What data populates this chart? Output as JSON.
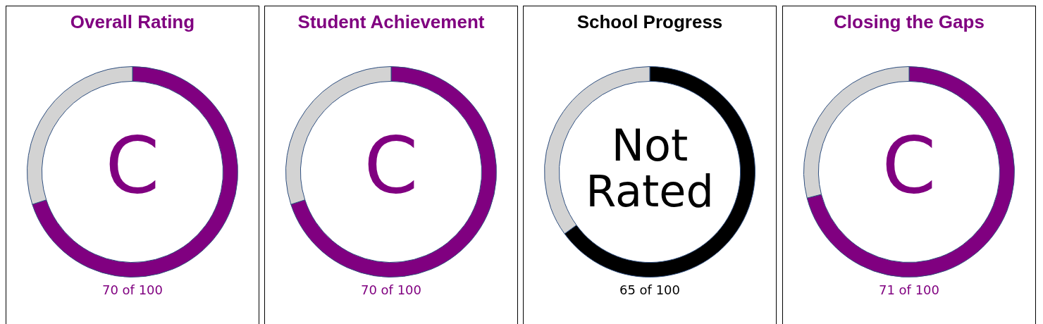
{
  "chart_data": [
    {
      "type": "donut",
      "title": "Overall Rating",
      "categories": [
        null,
        null
      ],
      "values": [
        70,
        30
      ],
      "colors": [
        "#800080",
        "#d3d3d3"
      ],
      "annotations": [
        "C",
        "70 of 100"
      ]
    },
    {
      "type": "donut",
      "title": "Student Achievement",
      "categories": [
        null,
        null
      ],
      "values": [
        70,
        30
      ],
      "colors": [
        "#800080",
        "#d3d3d3"
      ],
      "annotations": [
        "C",
        "70 of 100"
      ]
    },
    {
      "type": "donut",
      "title": "School Progress",
      "categories": [
        null,
        null
      ],
      "values": [
        65,
        35
      ],
      "colors": [
        "#000000",
        "#d3d3d3"
      ],
      "annotations": [
        "Not Rated",
        "65 of 100"
      ]
    },
    {
      "type": "donut",
      "title": "Closing the Gaps",
      "categories": [
        null,
        null
      ],
      "values": [
        71,
        29
      ],
      "colors": [
        "#800080",
        "#d3d3d3"
      ],
      "annotations": [
        "C",
        "71 of 100"
      ]
    }
  ]
}
